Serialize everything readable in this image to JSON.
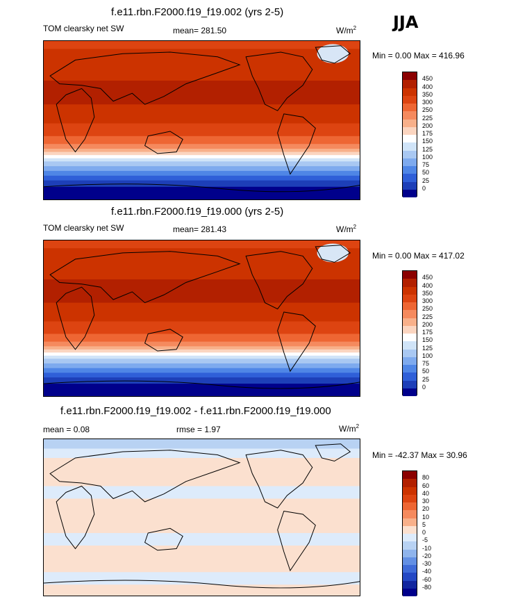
{
  "season": "JJA",
  "panels": [
    {
      "title": "f.e11.rbn.F2000.f19_f19.002 (yrs 2-5)",
      "left_label": "TOM clearsky net SW",
      "center_label": "mean= 281.50",
      "units": "W/m",
      "units_sup": "2",
      "minmax": "Min =   0.00 Max = 416.96",
      "colorbar": {
        "labels": [
          "450",
          "400",
          "350",
          "300",
          "250",
          "225",
          "200",
          "175",
          "150",
          "125",
          "100",
          "75",
          "50",
          "25",
          "0"
        ],
        "colors": [
          "#8b0000",
          "#b22000",
          "#cc3300",
          "#dd4411",
          "#ee6633",
          "#f58a5e",
          "#f8b08a",
          "#fbd5c0",
          "#ffffff",
          "#d0e4f8",
          "#a9c8f2",
          "#7eaaee",
          "#4f86e6",
          "#2f5fd8",
          "#1d3fb8",
          "#00008b"
        ]
      },
      "map": {
        "kind": "absolute"
      }
    },
    {
      "title": "f.e11.rbn.F2000.f19_f19.000 (yrs 2-5)",
      "left_label": "TOM clearsky net SW",
      "center_label": "mean= 281.43",
      "units": "W/m",
      "units_sup": "2",
      "minmax": "Min =   0.00 Max = 417.02",
      "colorbar": {
        "labels": [
          "450",
          "400",
          "350",
          "300",
          "250",
          "225",
          "200",
          "175",
          "150",
          "125",
          "100",
          "75",
          "50",
          "25",
          "0"
        ],
        "colors": [
          "#8b0000",
          "#b22000",
          "#cc3300",
          "#dd4411",
          "#ee6633",
          "#f58a5e",
          "#f8b08a",
          "#fbd5c0",
          "#ffffff",
          "#d0e4f8",
          "#a9c8f2",
          "#7eaaee",
          "#4f86e6",
          "#2f5fd8",
          "#1d3fb8",
          "#00008b"
        ]
      },
      "map": {
        "kind": "absolute"
      }
    },
    {
      "title": "f.e11.rbn.F2000.f19_f19.002 - f.e11.rbn.F2000.f19_f19.000",
      "left_label": "mean =   0.08",
      "center_label": "rmse =   1.97",
      "units": "W/m",
      "units_sup": "2",
      "minmax": "Min = -42.37 Max =  30.96",
      "colorbar": {
        "labels": [
          "80",
          "60",
          "40",
          "30",
          "20",
          "10",
          "5",
          "0",
          "-5",
          "-10",
          "-20",
          "-30",
          "-40",
          "-60",
          "-80"
        ],
        "colors": [
          "#8b0000",
          "#b22000",
          "#cc3300",
          "#dd4411",
          "#ee6633",
          "#f58a5e",
          "#f8b08a",
          "#fbe0cf",
          "#ddebfb",
          "#b8d2f3",
          "#8fb4ec",
          "#6390e4",
          "#3f6bd8",
          "#2448c4",
          "#12269f",
          "#00008b"
        ]
      },
      "map": {
        "kind": "difference"
      }
    }
  ]
}
